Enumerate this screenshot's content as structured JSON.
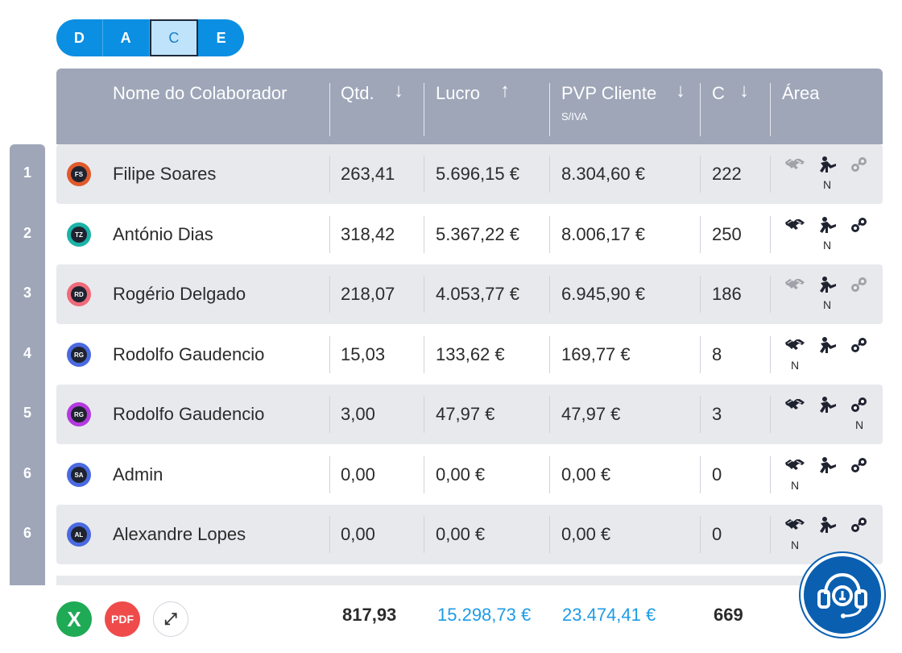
{
  "toggle": {
    "options": [
      "D",
      "A",
      "C",
      "E"
    ],
    "active": "C"
  },
  "columns": {
    "name": "Nome do Colaborador",
    "qtd": "Qtd.",
    "qtd_sort": "↓",
    "lucro": "Lucro",
    "lucro_sort": "↑",
    "pvp": "PVP Cliente",
    "pvp_sub": "S/IVA",
    "pvp_sort": "↓",
    "c": "C",
    "c_sort": "↓",
    "area": "Área"
  },
  "rows": [
    {
      "rank": "1",
      "initials": "FS",
      "ring": "#e05a2b",
      "name": "Filipe Soares",
      "qtd": "263,41",
      "lucro": "5.696,15 €",
      "pvp": "8.304,60 €",
      "c": "222",
      "areas": [
        {
          "icon": "handshake-icon",
          "active": false,
          "n": ""
        },
        {
          "icon": "worker-icon",
          "active": true,
          "n": "N"
        },
        {
          "icon": "parts-icon",
          "active": false,
          "n": ""
        }
      ]
    },
    {
      "rank": "2",
      "initials": "TZ",
      "ring": "#1bb3a8",
      "name": "António Dias",
      "qtd": "318,42",
      "lucro": "5.367,22 €",
      "pvp": "8.006,17 €",
      "c": "250",
      "areas": [
        {
          "icon": "handshake-icon",
          "active": true,
          "n": ""
        },
        {
          "icon": "worker-icon",
          "active": true,
          "n": "N"
        },
        {
          "icon": "parts-icon",
          "active": true,
          "n": ""
        }
      ]
    },
    {
      "rank": "3",
      "initials": "RD",
      "ring": "#f06a7a",
      "name": "Rogério Delgado",
      "qtd": "218,07",
      "lucro": "4.053,77 €",
      "pvp": "6.945,90 €",
      "c": "186",
      "areas": [
        {
          "icon": "handshake-icon",
          "active": false,
          "n": ""
        },
        {
          "icon": "worker-icon",
          "active": true,
          "n": "N"
        },
        {
          "icon": "parts-icon",
          "active": false,
          "n": ""
        }
      ]
    },
    {
      "rank": "4",
      "initials": "RG",
      "ring": "#4a6ae0",
      "name": "Rodolfo Gaudencio",
      "qtd": "15,03",
      "lucro": "133,62 €",
      "pvp": "169,77 €",
      "c": "8",
      "areas": [
        {
          "icon": "handshake-icon",
          "active": true,
          "n": "N"
        },
        {
          "icon": "worker-icon",
          "active": true,
          "n": ""
        },
        {
          "icon": "parts-icon",
          "active": true,
          "n": ""
        }
      ]
    },
    {
      "rank": "5",
      "initials": "RG",
      "ring": "#b43ae0",
      "name": "Rodolfo Gaudencio",
      "qtd": "3,00",
      "lucro": "47,97 €",
      "pvp": "47,97 €",
      "c": "3",
      "areas": [
        {
          "icon": "handshake-icon",
          "active": true,
          "n": ""
        },
        {
          "icon": "worker-icon",
          "active": true,
          "n": ""
        },
        {
          "icon": "parts-icon",
          "active": true,
          "n": "N"
        }
      ]
    },
    {
      "rank": "6",
      "initials": "SA",
      "ring": "#4a6ae0",
      "name": "Admin",
      "qtd": "0,00",
      "lucro": "0,00 €",
      "pvp": "0,00 €",
      "c": "0",
      "areas": [
        {
          "icon": "handshake-icon",
          "active": true,
          "n": "N"
        },
        {
          "icon": "worker-icon",
          "active": true,
          "n": ""
        },
        {
          "icon": "parts-icon",
          "active": true,
          "n": ""
        }
      ]
    },
    {
      "rank": "6",
      "initials": "AL",
      "ring": "#4a6ae0",
      "name": "Alexandre Lopes",
      "qtd": "0,00",
      "lucro": "0,00 €",
      "pvp": "0,00 €",
      "c": "0",
      "areas": [
        {
          "icon": "handshake-icon",
          "active": true,
          "n": "N"
        },
        {
          "icon": "worker-icon",
          "active": true,
          "n": ""
        },
        {
          "icon": "parts-icon",
          "active": true,
          "n": ""
        }
      ]
    }
  ],
  "totals": {
    "qtd": "817,93",
    "lucro": "15.298,73 €",
    "pvp": "23.474,41 €",
    "c": "669"
  },
  "footer": {
    "excel_label": "X",
    "pdf_label": "PDF",
    "expand_label": "⤢"
  },
  "support": {
    "icon": "headset-support-icon"
  }
}
